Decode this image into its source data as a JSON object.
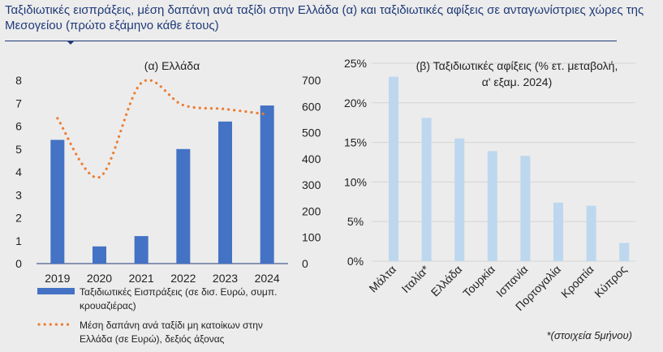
{
  "figure": {
    "title": "Ταξιδιωτικές εισπράξεις, μέση δαπάνη ανά ταξίδι στην Ελλάδα (α) και ταξιδιωτικές αφίξεις σε ανταγωνίστριες χώρες της Μεσογείου (πρώτο εξάμηνο κάθε έτους)"
  },
  "colors": {
    "bar_a": "#4472c4",
    "line_a": "#ed7d31",
    "bar_b": "#bdd7ee",
    "title": "#1f3a78"
  },
  "chart_data": [
    {
      "type": "bar",
      "title": "(α) Ελλάδα",
      "categories": [
        "2019",
        "2020",
        "2021",
        "2022",
        "2023",
        "2024"
      ],
      "left_axis": {
        "ticks": [
          "0",
          "1",
          "2",
          "3",
          "4",
          "5",
          "6",
          "7",
          "8"
        ],
        "range": [
          0,
          8
        ]
      },
      "right_axis": {
        "ticks": [
          "0",
          "100",
          "200",
          "300",
          "400",
          "500",
          "600",
          "700"
        ],
        "range": [
          0,
          700
        ]
      },
      "series": [
        {
          "name": "Ταξιδιωτικές Εισπράξεις (σε δισ. Ευρώ, συμπ. κρουαζιέρας)",
          "kind": "bar",
          "axis": "left",
          "values": [
            5.4,
            0.75,
            1.2,
            5.0,
            6.2,
            6.9
          ]
        },
        {
          "name": "Μέση δαπάνη ανά ταξίδι μη κατοίκων στην Ελλάδα (σε Ευρώ), δεξιός άξονας",
          "kind": "line",
          "style": "dotted",
          "axis": "right",
          "values": [
            555,
            330,
            690,
            605,
            590,
            570
          ]
        }
      ],
      "legend": [
        {
          "line1": "Ταξιδιωτικές Εισπράξεις (σε δισ. Ευρώ, συμπ.",
          "line2": "κρουαζιέρας)"
        },
        {
          "line1": "Μέση δαπάνη ανά ταξίδι μη κατοίκων στην",
          "line2": "Ελλάδα (σε Ευρώ), δεξιός άξονας"
        }
      ]
    },
    {
      "type": "bar",
      "title_line1": "(β) Ταξιδιωτικές αφίξεις (% ετ. μεταβολή,",
      "title_line2": "α' εξαμ. 2024)",
      "categories": [
        "Μάλτα",
        "Ιταλία*",
        "Ελλάδα",
        "Τουρκία",
        "Ισπανία",
        "Πορτογαλία",
        "Κροατία",
        "Κύπρος"
      ],
      "values": [
        23.3,
        18.1,
        15.5,
        13.9,
        13.3,
        7.4,
        7.0,
        2.3
      ],
      "y_axis": {
        "ticks": [
          "0%",
          "5%",
          "10%",
          "15%",
          "20%",
          "25%"
        ],
        "range": [
          0,
          25
        ]
      },
      "note": "*(στοιχεία 5μήνου)"
    }
  ]
}
